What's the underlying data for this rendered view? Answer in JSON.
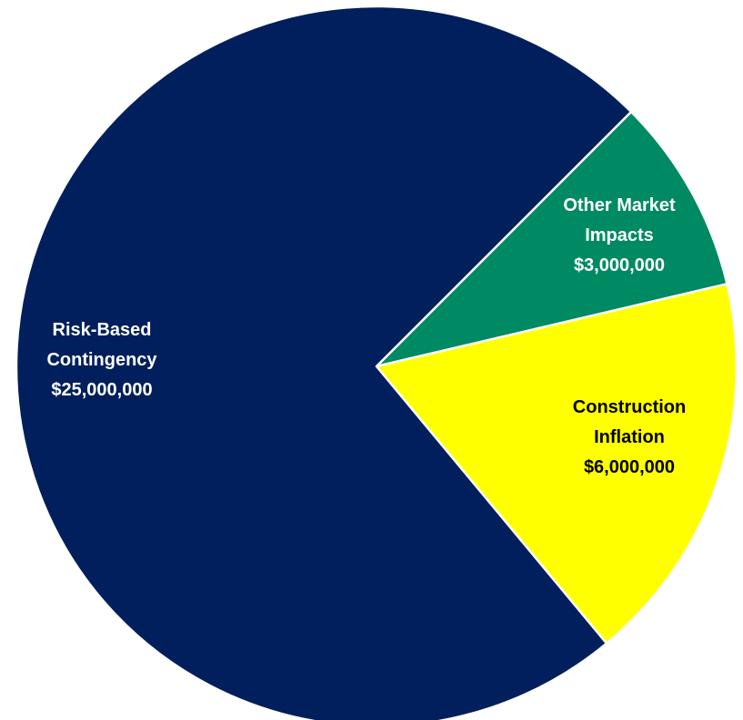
{
  "chart_data": {
    "type": "pie",
    "title": "",
    "slices": [
      {
        "label_lines": [
          "Other Market",
          "Impacts",
          "$3,000,000"
        ],
        "value": 3000000,
        "color": "#008a63",
        "text_color": "#ffffff"
      },
      {
        "label_lines": [
          "Construction",
          "Inflation",
          "$6,000,000"
        ],
        "value": 6000000,
        "color": "#ffff00",
        "text_color": "#000000"
      },
      {
        "label_lines": [
          "Risk-Based",
          "Contingency",
          "$25,000,000"
        ],
        "value": 25000000,
        "color": "#001f5c",
        "text_color": "#ffffff"
      }
    ],
    "start_angle_deg": -45,
    "direction": "clockwise",
    "slice_border_color": "#ffffff",
    "legend": "none"
  }
}
